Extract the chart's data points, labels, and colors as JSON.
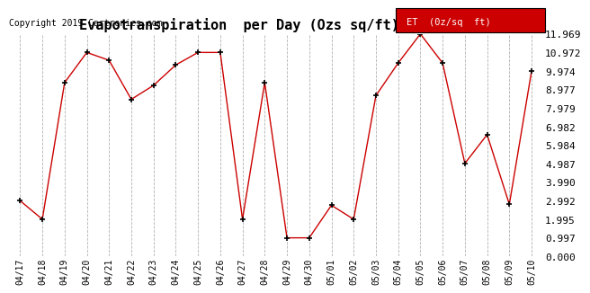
{
  "title": "Evapotranspiration  per Day (Ozs sq/ft) 20190511",
  "copyright": "Copyright 2019 Cartronics.com",
  "legend_label": "ET  (0z/sq  ft)",
  "x_labels": [
    "04/17",
    "04/18",
    "04/19",
    "04/20",
    "04/21",
    "04/22",
    "04/23",
    "04/24",
    "04/25",
    "04/26",
    "04/27",
    "04/28",
    "04/29",
    "04/30",
    "05/01",
    "05/02",
    "05/03",
    "05/04",
    "05/05",
    "05/06",
    "05/07",
    "05/08",
    "05/09",
    "05/10"
  ],
  "y_values": [
    2.992,
    1.995,
    9.35,
    10.972,
    10.55,
    8.45,
    9.2,
    10.3,
    10.972,
    10.972,
    1.995,
    9.35,
    0.997,
    0.997,
    2.75,
    1.995,
    8.65,
    10.4,
    11.969,
    10.4,
    5.0,
    6.55,
    2.8,
    9.974
  ],
  "y_ticks": [
    0.0,
    0.997,
    1.995,
    2.992,
    3.99,
    4.987,
    5.984,
    6.982,
    7.979,
    8.977,
    9.974,
    10.972,
    11.969
  ],
  "y_min": 0.0,
  "y_max": 11.969,
  "line_color": "#cc0000",
  "marker_color": "#000000",
  "bg_color": "#ffffff",
  "grid_color": "#b0b0b0",
  "legend_bg": "#cc0000",
  "legend_text_color": "#ffffff",
  "title_fontsize": 11,
  "copyright_fontsize": 7,
  "tick_fontsize": 7,
  "ytick_fontsize": 8
}
